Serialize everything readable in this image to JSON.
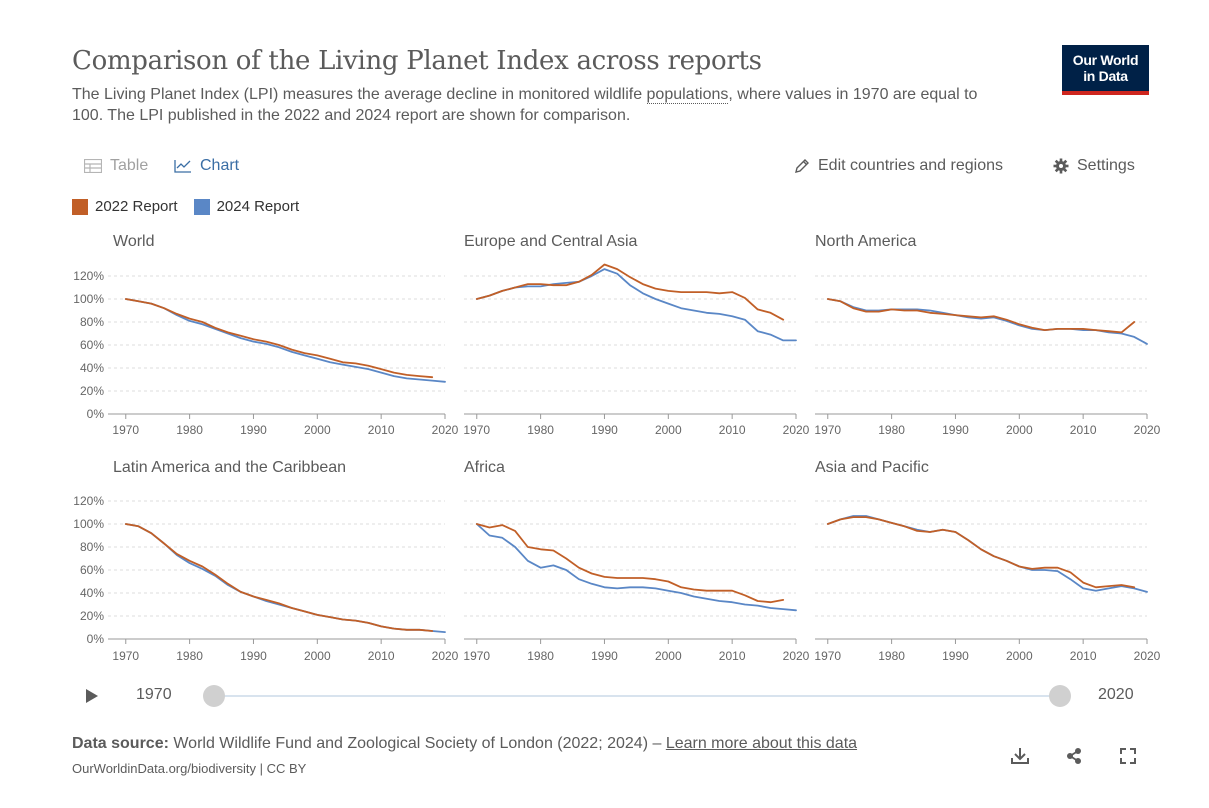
{
  "header": {
    "title": "Comparison of the Living Planet Index across reports",
    "subtitle_pre": "The Living Planet Index (LPI) measures the average decline in monitored wildlife ",
    "subtitle_link": "populations",
    "subtitle_post": ", where values in 1970 are equal to 100. The LPI published in the 2022 and 2024 report are shown for comparison.",
    "logo_line1": "Our World",
    "logo_line2": "in Data"
  },
  "tabs": {
    "table_label": "Table",
    "chart_label": "Chart",
    "table_icon": "table-icon",
    "chart_icon": "line-chart-icon"
  },
  "actions": {
    "edit_label": "Edit countries and regions",
    "edit_icon": "pencil-icon",
    "settings_label": "Settings",
    "settings_icon": "gear-icon"
  },
  "legend": [
    {
      "name": "2022 Report",
      "color": "#c15f27"
    },
    {
      "name": "2024 Report",
      "color": "#5a87c6"
    }
  ],
  "timeline": {
    "start": "1970",
    "end": "2020",
    "play_icon": "play-icon"
  },
  "footer": {
    "source_label": "Data source:",
    "source_text": " World Wildlife Fund and Zoological Society of London (2022; 2024) – ",
    "learn_more": "Learn more about this data",
    "url_license": "OurWorldinData.org/biodiversity | CC BY",
    "icons": [
      "download-icon",
      "share-icon",
      "fullscreen-icon"
    ]
  },
  "chart_data": {
    "type": "line",
    "y_unit": "%",
    "ylim": [
      0,
      120
    ],
    "yticks": [
      "0%",
      "20%",
      "40%",
      "60%",
      "80%",
      "100%",
      "120%"
    ],
    "xlim": [
      1968,
      2020
    ],
    "xticks": [
      "1970",
      "1980",
      "1990",
      "2000",
      "2010",
      "2020"
    ],
    "grid": "horizontal",
    "legend_position": "top-left",
    "series_names": [
      "2022 Report",
      "2024 Report"
    ],
    "panels": [
      {
        "title": "World",
        "series": [
          {
            "name": "2022 Report",
            "x": [
              1970,
              1972,
              1974,
              1976,
              1978,
              1980,
              1982,
              1984,
              1986,
              1988,
              1990,
              1992,
              1994,
              1996,
              1998,
              2000,
              2002,
              2004,
              2006,
              2008,
              2010,
              2012,
              2014,
              2016,
              2018
            ],
            "y": [
              100,
              98,
              96,
              92,
              87,
              83,
              80,
              75,
              71,
              68,
              65,
              63,
              60,
              56,
              53,
              51,
              48,
              45,
              44,
              42,
              39,
              36,
              34,
              33,
              32
            ]
          },
          {
            "name": "2024 Report",
            "x": [
              1970,
              1972,
              1974,
              1976,
              1978,
              1980,
              1982,
              1984,
              1986,
              1988,
              1990,
              1992,
              1994,
              1996,
              1998,
              2000,
              2002,
              2004,
              2006,
              2008,
              2010,
              2012,
              2014,
              2016,
              2018,
              2020
            ],
            "y": [
              100,
              98,
              96,
              92,
              86,
              81,
              78,
              74,
              70,
              66,
              63,
              61,
              58,
              54,
              51,
              48,
              45,
              43,
              41,
              39,
              36,
              33,
              31,
              30,
              29,
              28
            ]
          }
        ]
      },
      {
        "title": "Europe and Central Asia",
        "series": [
          {
            "name": "2022 Report",
            "x": [
              1970,
              1972,
              1974,
              1976,
              1978,
              1980,
              1982,
              1984,
              1986,
              1988,
              1990,
              1992,
              1994,
              1996,
              1998,
              2000,
              2002,
              2004,
              2006,
              2008,
              2010,
              2012,
              2014,
              2016,
              2018
            ],
            "y": [
              100,
              103,
              107,
              110,
              113,
              113,
              112,
              112,
              115,
              121,
              130,
              126,
              119,
              113,
              109,
              107,
              106,
              106,
              106,
              105,
              106,
              101,
              91,
              88,
              82
            ]
          },
          {
            "name": "2024 Report",
            "x": [
              1970,
              1972,
              1974,
              1976,
              1978,
              1980,
              1982,
              1984,
              1986,
              1988,
              1990,
              1992,
              1994,
              1996,
              1998,
              2000,
              2002,
              2004,
              2006,
              2008,
              2010,
              2012,
              2014,
              2016,
              2018,
              2020
            ],
            "y": [
              100,
              103,
              107,
              110,
              111,
              111,
              113,
              114,
              115,
              120,
              126,
              122,
              112,
              105,
              100,
              96,
              92,
              90,
              88,
              87,
              85,
              82,
              72,
              69,
              64,
              64
            ]
          }
        ]
      },
      {
        "title": "North America",
        "series": [
          {
            "name": "2022 Report",
            "x": [
              1970,
              1972,
              1974,
              1976,
              1978,
              1980,
              1982,
              1984,
              1986,
              1988,
              1990,
              1992,
              1994,
              1996,
              1998,
              2000,
              2002,
              2004,
              2006,
              2008,
              2010,
              2012,
              2014,
              2016,
              2018
            ],
            "y": [
              100,
              98,
              92,
              89,
              89,
              91,
              90,
              90,
              88,
              87,
              86,
              85,
              84,
              85,
              82,
              78,
              75,
              73,
              74,
              74,
              74,
              73,
              72,
              71,
              80
            ]
          },
          {
            "name": "2024 Report",
            "x": [
              1970,
              1972,
              1974,
              1976,
              1978,
              1980,
              1982,
              1984,
              1986,
              1988,
              1990,
              1992,
              1994,
              1996,
              1998,
              2000,
              2002,
              2004,
              2006,
              2008,
              2010,
              2012,
              2014,
              2016,
              2018,
              2020
            ],
            "y": [
              100,
              98,
              93,
              90,
              90,
              91,
              91,
              91,
              90,
              88,
              86,
              84,
              83,
              84,
              81,
              77,
              74,
              73,
              74,
              74,
              73,
              73,
              71,
              70,
              67,
              61
            ]
          }
        ]
      },
      {
        "title": "Latin America and the Caribbean",
        "series": [
          {
            "name": "2022 Report",
            "x": [
              1970,
              1972,
              1974,
              1976,
              1978,
              1980,
              1982,
              1984,
              1986,
              1988,
              1990,
              1992,
              1994,
              1996,
              1998,
              2000,
              2002,
              2004,
              2006,
              2008,
              2010,
              2012,
              2014,
              2016,
              2018
            ],
            "y": [
              100,
              98,
              92,
              83,
              74,
              68,
              63,
              56,
              48,
              41,
              37,
              34,
              31,
              27,
              24,
              21,
              19,
              17,
              16,
              14,
              11,
              9,
              8,
              8,
              7
            ]
          },
          {
            "name": "2024 Report",
            "x": [
              1970,
              1972,
              1974,
              1976,
              1978,
              1980,
              1982,
              1984,
              1986,
              1988,
              1990,
              1992,
              1994,
              1996,
              1998,
              2000,
              2002,
              2004,
              2006,
              2008,
              2010,
              2012,
              2014,
              2016,
              2018,
              2020
            ],
            "y": [
              100,
              98,
              92,
              83,
              73,
              66,
              61,
              55,
              47,
              41,
              37,
              33,
              30,
              27,
              24,
              21,
              19,
              17,
              16,
              14,
              11,
              9,
              8,
              8,
              7,
              6
            ]
          }
        ]
      },
      {
        "title": "Africa",
        "series": [
          {
            "name": "2022 Report",
            "x": [
              1970,
              1972,
              1974,
              1976,
              1978,
              1980,
              1982,
              1984,
              1986,
              1988,
              1990,
              1992,
              1994,
              1996,
              1998,
              2000,
              2002,
              2004,
              2006,
              2008,
              2010,
              2012,
              2014,
              2016,
              2018
            ],
            "y": [
              100,
              97,
              99,
              94,
              80,
              78,
              77,
              70,
              62,
              57,
              54,
              53,
              53,
              53,
              52,
              50,
              45,
              43,
              42,
              42,
              42,
              38,
              33,
              32,
              34
            ]
          },
          {
            "name": "2024 Report",
            "x": [
              1970,
              1972,
              1974,
              1976,
              1978,
              1980,
              1982,
              1984,
              1986,
              1988,
              1990,
              1992,
              1994,
              1996,
              1998,
              2000,
              2002,
              2004,
              2006,
              2008,
              2010,
              2012,
              2014,
              2016,
              2018,
              2020
            ],
            "y": [
              100,
              90,
              88,
              80,
              68,
              62,
              64,
              60,
              52,
              48,
              45,
              44,
              45,
              45,
              44,
              42,
              40,
              37,
              35,
              33,
              32,
              30,
              29,
              27,
              26,
              25
            ]
          }
        ]
      },
      {
        "title": "Asia and Pacific",
        "series": [
          {
            "name": "2022 Report",
            "x": [
              1970,
              1972,
              1974,
              1976,
              1978,
              1980,
              1982,
              1984,
              1986,
              1988,
              1990,
              1992,
              1994,
              1996,
              1998,
              2000,
              2002,
              2004,
              2006,
              2008,
              2010,
              2012,
              2014,
              2016,
              2018
            ],
            "y": [
              100,
              104,
              106,
              106,
              104,
              101,
              98,
              94,
              93,
              95,
              93,
              86,
              78,
              72,
              68,
              63,
              61,
              62,
              62,
              58,
              49,
              45,
              46,
              47,
              45
            ]
          },
          {
            "name": "2024 Report",
            "x": [
              1970,
              1972,
              1974,
              1976,
              1978,
              1980,
              1982,
              1984,
              1986,
              1988,
              1990,
              1992,
              1994,
              1996,
              1998,
              2000,
              2002,
              2004,
              2006,
              2008,
              2010,
              2012,
              2014,
              2016,
              2018,
              2020
            ],
            "y": [
              100,
              104,
              107,
              107,
              104,
              101,
              98,
              95,
              93,
              95,
              93,
              86,
              78,
              72,
              68,
              63,
              60,
              60,
              59,
              52,
              44,
              42,
              44,
              46,
              44,
              41
            ]
          }
        ]
      }
    ]
  }
}
